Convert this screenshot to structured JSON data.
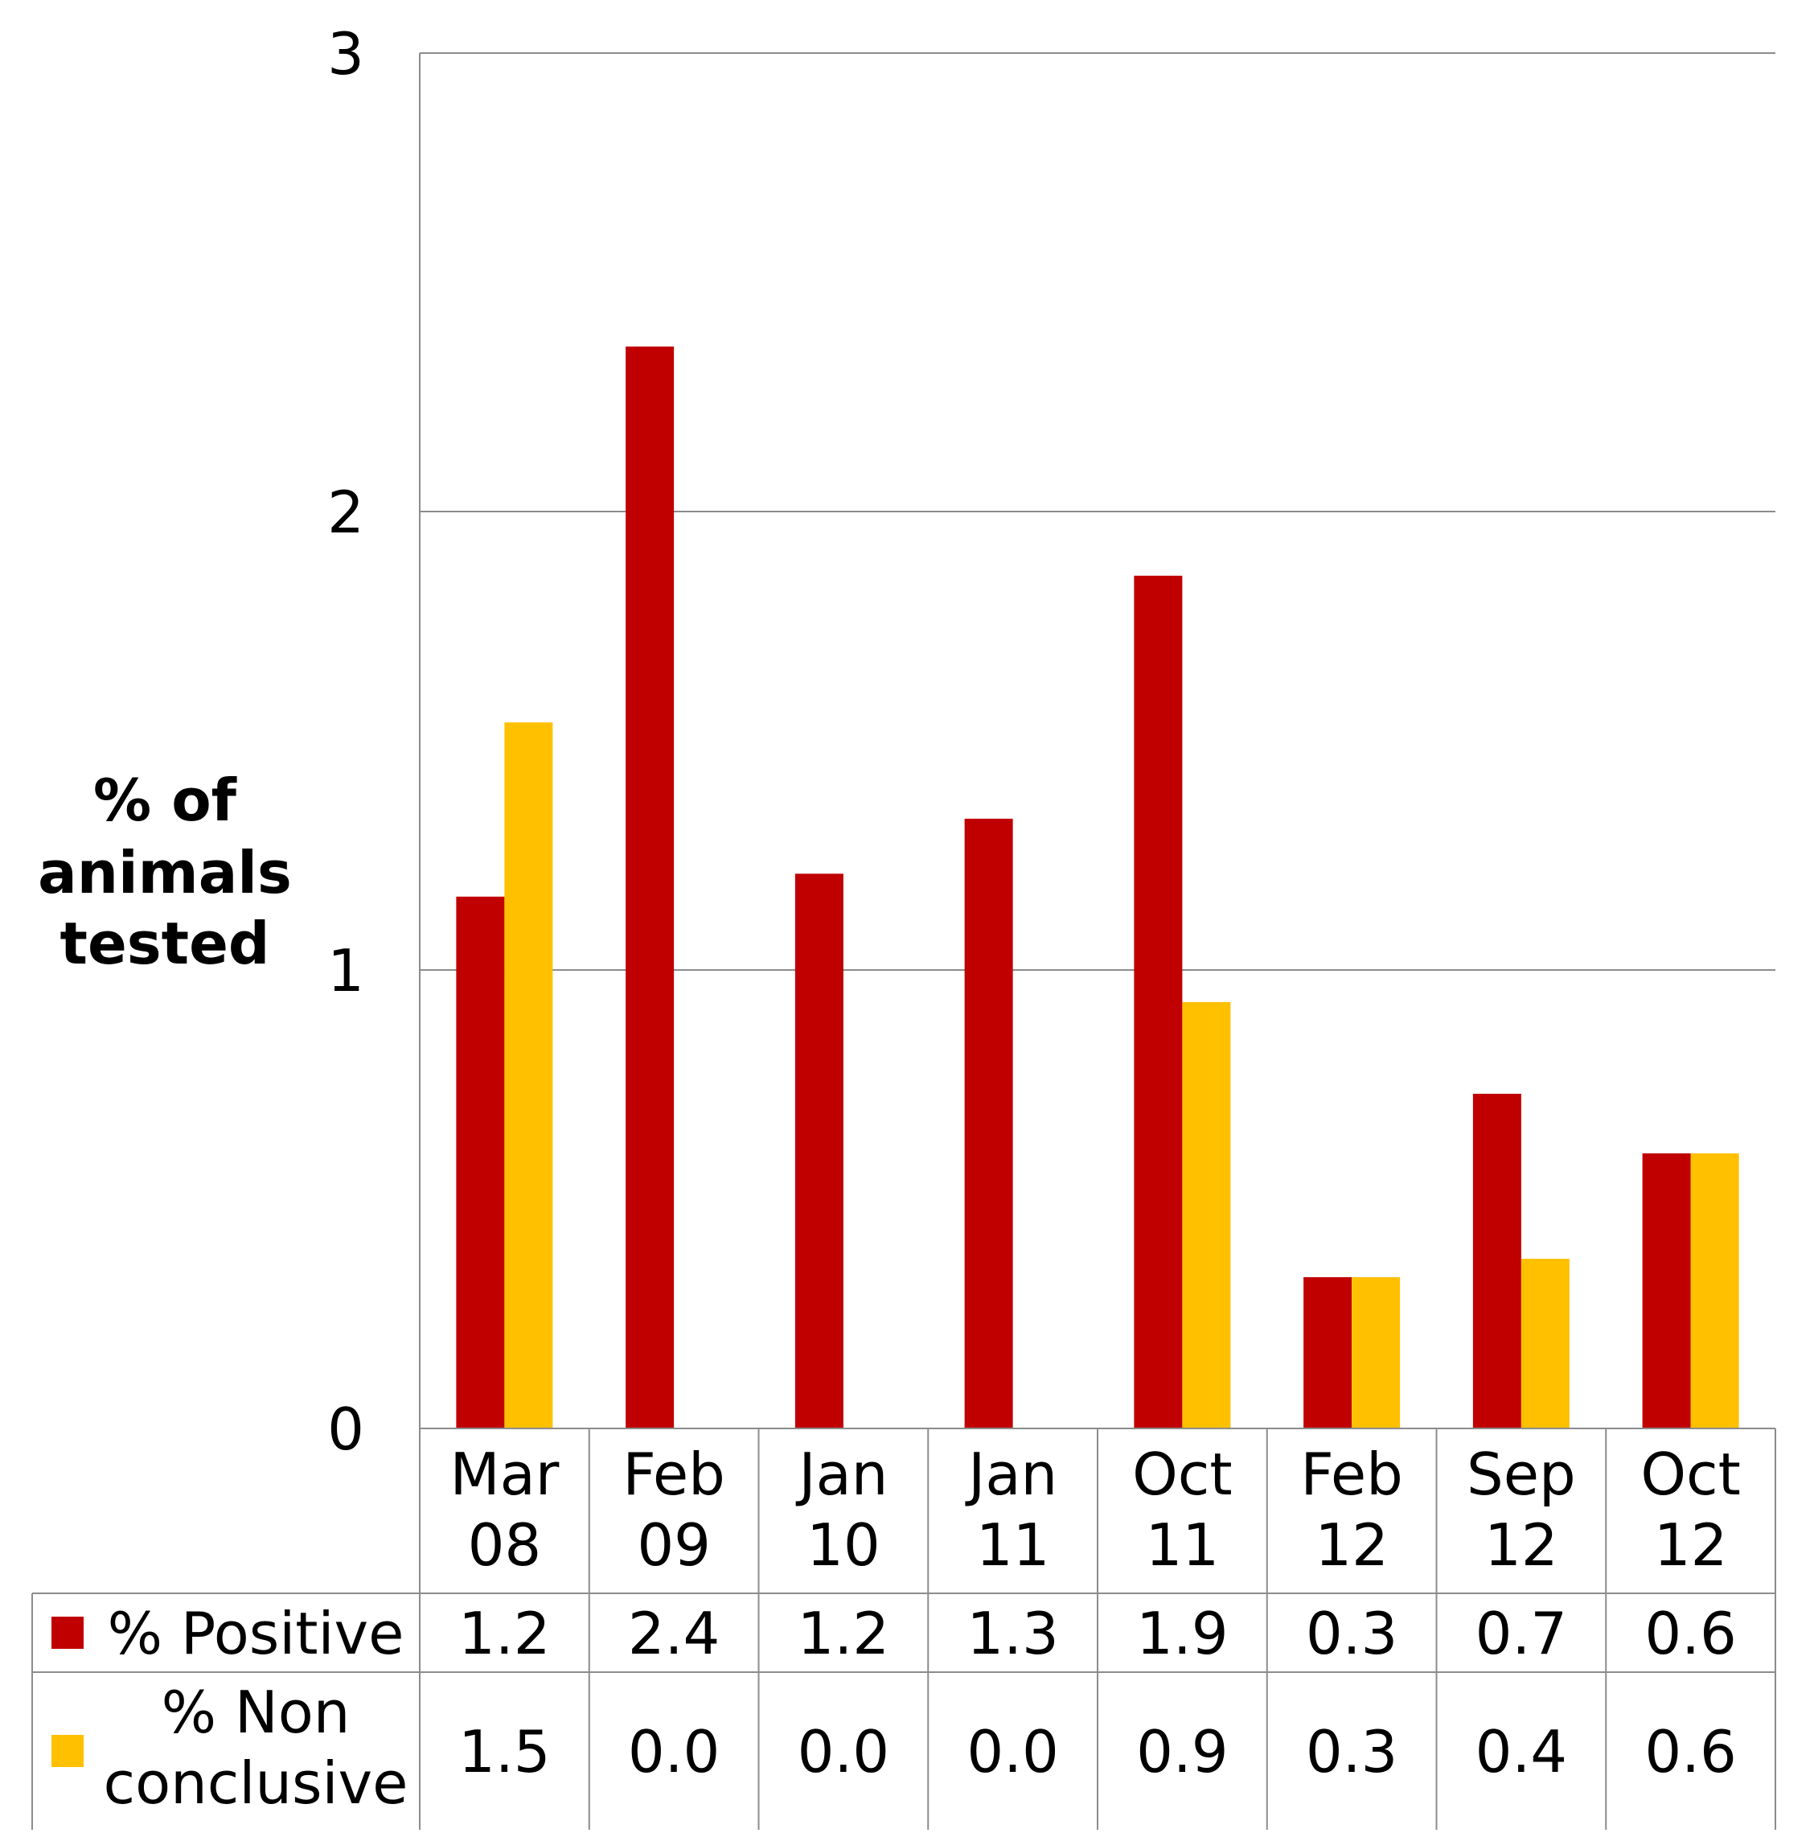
{
  "chart_data": {
    "type": "bar",
    "ylabel_lines": [
      "%  of",
      "animals",
      "tested"
    ],
    "ylim": [
      0,
      3
    ],
    "yticks": [
      0,
      1,
      2,
      3
    ],
    "grid": true,
    "categories": [
      [
        "Mar",
        "08"
      ],
      [
        "Feb",
        "09"
      ],
      [
        "Jan",
        "10"
      ],
      [
        "Jan",
        "11"
      ],
      [
        "Oct",
        "11"
      ],
      [
        "Feb",
        "12"
      ],
      [
        "Sep",
        "12"
      ],
      [
        "Oct",
        "12"
      ]
    ],
    "series": [
      {
        "name": "% Positive",
        "name_lines": [
          "% Positive"
        ],
        "color": "#c00000",
        "values": [
          1.16,
          2.36,
          1.21,
          1.33,
          1.86,
          0.33,
          0.73,
          0.6
        ],
        "labels": [
          "1.2",
          "2.4",
          "1.2",
          "1.3",
          "1.9",
          "0.3",
          "0.7",
          "0.6"
        ]
      },
      {
        "name": "% Non conclusive",
        "name_lines": [
          "% Non",
          "conclusive"
        ],
        "color": "#ffc000",
        "values": [
          1.54,
          0.0,
          0.0,
          0.0,
          0.93,
          0.33,
          0.37,
          0.6
        ],
        "labels": [
          "1.5",
          "0.0",
          "0.0",
          "0.0",
          "0.9",
          "0.3",
          "0.4",
          "0.6"
        ]
      }
    ],
    "legend_placement": "data-table"
  }
}
